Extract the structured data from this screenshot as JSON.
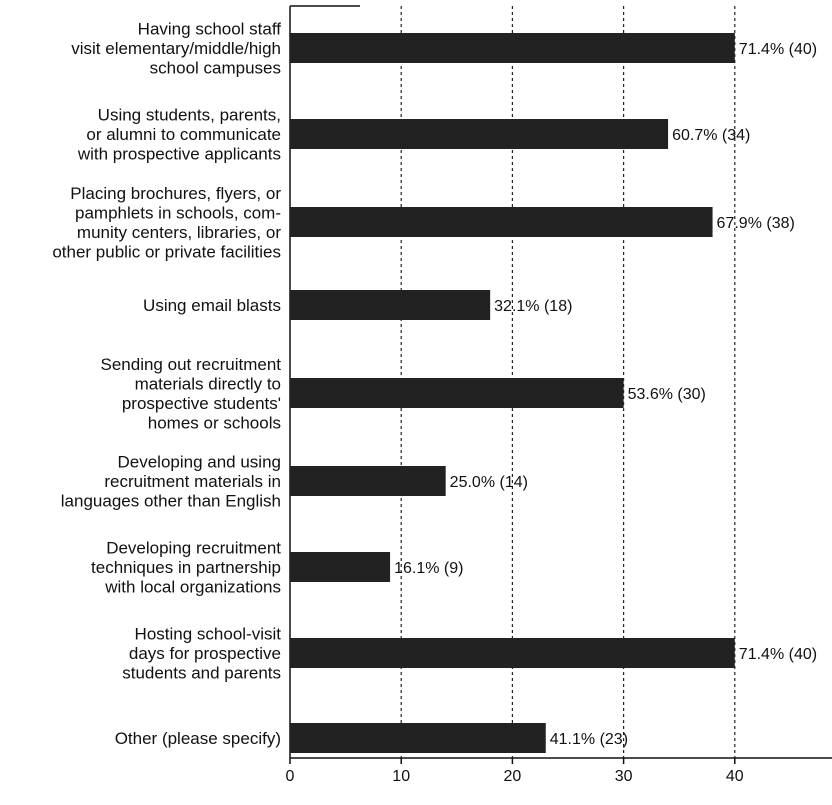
{
  "chart_data": {
    "type": "bar",
    "orientation": "horizontal",
    "categories": [
      [
        "Having school staff",
        "visit elementary/middle/high",
        "school campuses"
      ],
      [
        "Using students, parents,",
        "or alumni to communicate",
        "with prospective applicants"
      ],
      [
        "Placing brochures, flyers, or",
        "pamphlets in schools, com-",
        "munity centers, libraries, or",
        "other public or private facilities"
      ],
      [
        "Using email blasts"
      ],
      [
        "Sending out recruitment",
        "materials directly to",
        "prospective students'",
        "homes or schools"
      ],
      [
        "Developing and using",
        "recruitment materials in",
        "languages other than English"
      ],
      [
        "Developing recruitment",
        "techniques in partnership",
        "with local organizations"
      ],
      [
        "Hosting school-visit",
        "days for prospective",
        "students and parents"
      ],
      [
        "Other (please specify)"
      ]
    ],
    "values": [
      40,
      34,
      38,
      18,
      30,
      14,
      9,
      40,
      23
    ],
    "value_labels": [
      "71.4% (40)",
      "60.7% (34)",
      "67.9% (38)",
      "32.1% (18)",
      "53.6% (30)",
      "25.0% (14)",
      "16.1% (9)",
      "71.4% (40)",
      "41.1% (23)"
    ],
    "xticks": [
      "0",
      "10",
      "20",
      "30",
      "40"
    ],
    "xlim": [
      0,
      48
    ],
    "grid": "vertical dashed",
    "bar_color": "#222222"
  }
}
